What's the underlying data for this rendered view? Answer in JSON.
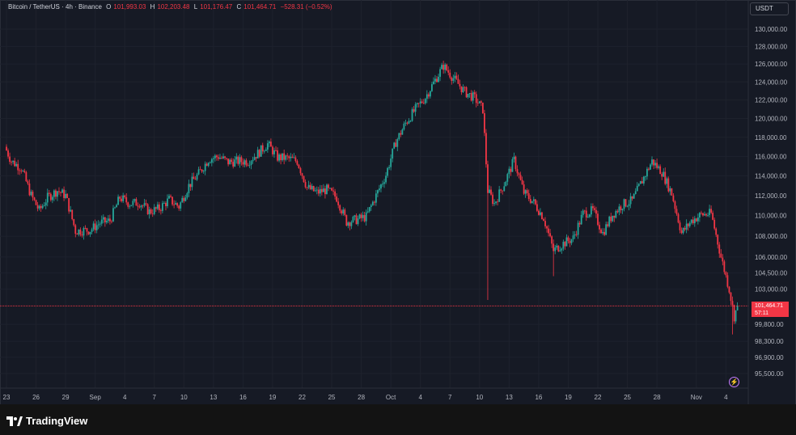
{
  "legend": {
    "symbol": "Bitcoin / TetherUS · 4h · Binance",
    "open_label": "O",
    "open": "101,993.03",
    "high_label": "H",
    "high": "102,203.48",
    "low_label": "L",
    "low": "101,176.47",
    "close_label": "C",
    "close": "101,464.71",
    "change": "−528.31 (−0.52%)"
  },
  "currency": "USDT",
  "price_badge": {
    "price": "101,464.71",
    "countdown": "57:11"
  },
  "brand": "TradingView",
  "colors": {
    "up": "#26a69a",
    "down": "#f23645",
    "background": "#161a25",
    "grid": "#1e222d",
    "text": "#b2b5be"
  },
  "icons": {
    "alert": "lightning-icon",
    "logo": "tradingview-logo-icon"
  },
  "chart_data": {
    "type": "candlestick",
    "y_axis": {
      "ticks": [
        130000,
        128000,
        126000,
        124000,
        122000,
        120000,
        118000,
        116000,
        114000,
        112000,
        110000,
        108000,
        106000,
        104500,
        103000,
        99800,
        98300,
        96900,
        95500
      ],
      "tick_labels": [
        "130,000.00",
        "128,000.00",
        "126,000.00",
        "124,000.00",
        "122,000.00",
        "120,000.00",
        "118,000.00",
        "116,000.00",
        "114,000.00",
        "112,000.00",
        "110,000.00",
        "108,000.00",
        "106,000.00",
        "104,500.00",
        "103,000.00",
        "99,800.00",
        "98,300.00",
        "96,900.00",
        "95,500.00"
      ],
      "scale": "log"
    },
    "x_axis": {
      "tick_labels": [
        "23",
        "26",
        "29",
        "Sep",
        "4",
        "7",
        "10",
        "13",
        "16",
        "19",
        "22",
        "25",
        "28",
        "Oct",
        "4",
        "7",
        "10",
        "13",
        "16",
        "19",
        "22",
        "25",
        "28",
        "Nov",
        "4"
      ],
      "tick_dates": [
        "2025-08-23",
        "2025-08-26",
        "2025-08-29",
        "2025-09-01",
        "2025-09-04",
        "2025-09-07",
        "2025-09-10",
        "2025-09-13",
        "2025-09-16",
        "2025-09-19",
        "2025-09-22",
        "2025-09-25",
        "2025-09-28",
        "2025-10-01",
        "2025-10-04",
        "2025-10-07",
        "2025-10-10",
        "2025-10-13",
        "2025-10-16",
        "2025-10-19",
        "2025-10-22",
        "2025-10-25",
        "2025-10-28",
        "2025-11-01",
        "2025-11-04"
      ]
    },
    "interval": "4h",
    "current_price": 101464.71,
    "anchors": [
      [
        "2025-08-22T20:00",
        117000
      ],
      [
        "2025-08-23T12:00",
        115500
      ],
      [
        "2025-08-24T12:00",
        114800
      ],
      [
        "2025-08-25T12:00",
        112000
      ],
      [
        "2025-08-26T08:00",
        110500
      ],
      [
        "2025-08-27T04:00",
        111800
      ],
      [
        "2025-08-28T04:00",
        112500
      ],
      [
        "2025-08-29T00:00",
        112000
      ],
      [
        "2025-08-30T00:00",
        108500
      ],
      [
        "2025-08-31T12:00",
        108600
      ],
      [
        "2025-09-01T12:00",
        109300
      ],
      [
        "2025-09-02T12:00",
        109500
      ],
      [
        "2025-09-03T12:00",
        111800
      ],
      [
        "2025-09-04T12:00",
        111200
      ],
      [
        "2025-09-05T12:00",
        111300
      ],
      [
        "2025-09-06T12:00",
        110400
      ],
      [
        "2025-09-07T12:00",
        110700
      ],
      [
        "2025-09-08T12:00",
        111600
      ],
      [
        "2025-09-09T12:00",
        110900
      ],
      [
        "2025-09-10T12:00",
        113000
      ],
      [
        "2025-09-11T12:00",
        114200
      ],
      [
        "2025-09-12T12:00",
        115700
      ],
      [
        "2025-09-13T12:00",
        116000
      ],
      [
        "2025-09-14T12:00",
        115400
      ],
      [
        "2025-09-15T12:00",
        115500
      ],
      [
        "2025-09-16T12:00",
        115500
      ],
      [
        "2025-09-17T12:00",
        116300
      ],
      [
        "2025-09-18T12:00",
        117300
      ],
      [
        "2025-09-19T12:00",
        115900
      ],
      [
        "2025-09-20T12:00",
        115800
      ],
      [
        "2025-09-21T12:00",
        115500
      ],
      [
        "2025-09-22T12:00",
        112800
      ],
      [
        "2025-09-23T12:00",
        112300
      ],
      [
        "2025-09-24T12:00",
        112600
      ],
      [
        "2025-09-25T12:00",
        111800
      ],
      [
        "2025-09-26T12:00",
        109400
      ],
      [
        "2025-09-27T12:00",
        109600
      ],
      [
        "2025-09-28T12:00",
        109900
      ],
      [
        "2025-09-29T12:00",
        112000
      ],
      [
        "2025-09-30T12:00",
        114100
      ],
      [
        "2025-10-01T12:00",
        117500
      ],
      [
        "2025-10-02T12:00",
        119500
      ],
      [
        "2025-10-03T12:00",
        121000
      ],
      [
        "2025-10-04T12:00",
        122300
      ],
      [
        "2025-10-05T12:00",
        124200
      ],
      [
        "2025-10-06T08:00",
        125800
      ],
      [
        "2025-10-07T12:00",
        124200
      ],
      [
        "2025-10-08T12:00",
        122900
      ],
      [
        "2025-10-09T12:00",
        122200
      ],
      [
        "2025-10-10T08:00",
        121000
      ],
      [
        "2025-10-10T20:00",
        112500
      ],
      [
        "2025-10-11T12:00",
        111200
      ],
      [
        "2025-10-12T12:00",
        113200
      ],
      [
        "2025-10-13T12:00",
        115600
      ],
      [
        "2025-10-14T12:00",
        112300
      ],
      [
        "2025-10-15T12:00",
        111300
      ],
      [
        "2025-10-16T12:00",
        109800
      ],
      [
        "2025-10-17T12:00",
        106600
      ],
      [
        "2025-10-18T12:00",
        107300
      ],
      [
        "2025-10-19T12:00",
        107800
      ],
      [
        "2025-10-20T12:00",
        110200
      ],
      [
        "2025-10-21T12:00",
        110500
      ],
      [
        "2025-10-22T12:00",
        108300
      ],
      [
        "2025-10-23T12:00",
        110100
      ],
      [
        "2025-10-24T12:00",
        111100
      ],
      [
        "2025-10-25T12:00",
        111500
      ],
      [
        "2025-10-26T12:00",
        113500
      ],
      [
        "2025-10-27T12:00",
        115500
      ],
      [
        "2025-10-28T12:00",
        114400
      ],
      [
        "2025-10-29T12:00",
        112200
      ],
      [
        "2025-10-30T12:00",
        108300
      ],
      [
        "2025-10-31T12:00",
        109500
      ],
      [
        "2025-11-01T12:00",
        110100
      ],
      [
        "2025-11-02T12:00",
        110200
      ],
      [
        "2025-11-03T12:00",
        106000
      ],
      [
        "2025-11-04T08:00",
        103000
      ],
      [
        "2025-11-04T20:00",
        100500
      ],
      [
        "2025-11-05T04:00",
        101465
      ]
    ],
    "wick_extremes": [
      [
        "2025-10-10T20:00",
        102000
      ],
      [
        "2025-11-04T16:00",
        98900
      ],
      [
        "2025-10-17T12:00",
        104200
      ],
      [
        "2025-10-06T08:00",
        126200
      ]
    ]
  }
}
